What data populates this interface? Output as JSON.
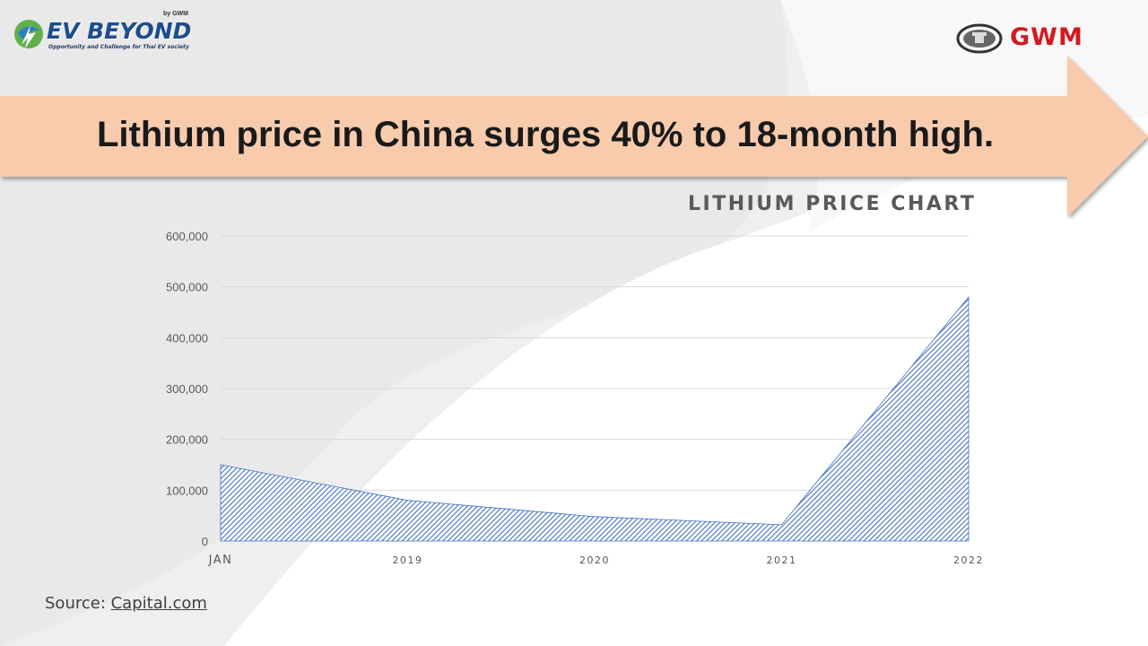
{
  "branding": {
    "ev_logo_text": "EV BEYOND",
    "ev_logo_by": "by GWM",
    "ev_logo_tagline": "Opportunity and Challenge for Thai EV society",
    "gwm_logo_text": "GWM"
  },
  "headline": "Lithium price in China surges 40% to 18-month high.",
  "source": {
    "prefix": "Source: ",
    "link_text": "Capital.com"
  },
  "colors": {
    "banner": "#f8cbad",
    "series_fill": "#4472c4",
    "gwm_red": "#d31a21"
  },
  "chart_data": {
    "type": "area",
    "title": "LITHIUM PRICE CHART",
    "xlabel": "",
    "ylabel": "",
    "categories": [
      "JAN",
      "2019",
      "2020",
      "2021",
      "2022"
    ],
    "x": [
      0,
      1,
      2,
      3,
      4
    ],
    "series": [
      {
        "values": [
          150000,
          80000,
          48000,
          32000,
          480000
        ],
        "x": [
          0,
          1,
          2,
          3,
          4
        ]
      }
    ],
    "ylim": [
      0,
      600000
    ],
    "yticks": [
      0,
      100000,
      200000,
      300000,
      400000,
      500000,
      600000
    ],
    "ytick_labels": [
      "0",
      "100,000",
      "200,000",
      "300,000",
      "400,000",
      "500,000",
      "600,000"
    ],
    "grid": true,
    "legend": "none",
    "fill_pattern": "diagonal-hatch"
  }
}
